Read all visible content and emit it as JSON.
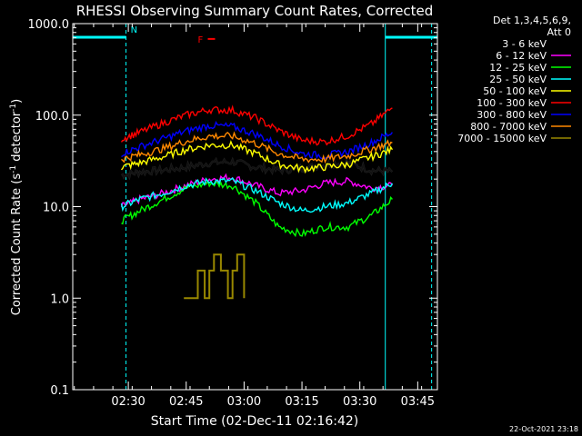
{
  "chart_data": {
    "type": "line",
    "title": "RHESSI Observing Summary Count Rates, Corrected",
    "xlabel": "Start Time (02-Dec-11 02:16:42)",
    "ylabel_main": "Corrected Count Rate (s",
    "ylabel_sup1": "-1",
    "ylabel_mid": " detector",
    "ylabel_sup2": "-1",
    "ylabel_end": ")",
    "ylabel": "Corrected Count Rate (s-1 detector-1)",
    "y_scale": "log",
    "ylim": [
      0.1,
      1000
    ],
    "xlim": [
      2.26,
      3.835
    ],
    "xlim_note_hours": "decimal hours UT",
    "y_ticks": [
      {
        "value": 0.1,
        "label": "0.1"
      },
      {
        "value": 1,
        "label": "1.0"
      },
      {
        "value": 10,
        "label": "10.0"
      },
      {
        "value": 100,
        "label": "100.0"
      },
      {
        "value": 1000,
        "label": "1000.0"
      }
    ],
    "x_ticks": [
      {
        "hours": 2.5,
        "label": "02:30"
      },
      {
        "hours": 2.75,
        "label": "02:45"
      },
      {
        "hours": 3.0,
        "label": "03:00"
      },
      {
        "hours": 3.25,
        "label": "03:15"
      },
      {
        "hours": 3.5,
        "label": "03:30"
      },
      {
        "hours": 3.75,
        "label": "03:45"
      }
    ],
    "legend_header": [
      "Det 1,3,4,5,6,9,",
      "Att 0"
    ],
    "legend_position": "right",
    "series": [
      {
        "name": "3 - 6 keV",
        "color": "#000000",
        "x": [
          2.47,
          2.55,
          2.65,
          2.75,
          2.85,
          2.95,
          3.05,
          3.15,
          3.25,
          3.35,
          3.45,
          3.55,
          3.64
        ],
        "y": [
          22,
          24,
          25,
          27,
          30,
          31,
          27,
          25,
          26,
          29,
          30,
          25,
          24
        ]
      },
      {
        "name": "6 - 12 keV",
        "color": "#ff00ff",
        "x": [
          2.47,
          2.55,
          2.65,
          2.75,
          2.85,
          2.95,
          3.05,
          3.15,
          3.25,
          3.35,
          3.45,
          3.55,
          3.64
        ],
        "y": [
          10,
          12,
          14,
          17,
          20,
          21,
          17,
          14,
          15,
          18,
          19,
          16,
          17
        ]
      },
      {
        "name": "12 - 25 keV",
        "color": "#00ff00",
        "x": [
          2.47,
          2.55,
          2.65,
          2.75,
          2.85,
          2.95,
          3.05,
          3.15,
          3.25,
          3.35,
          3.45,
          3.55,
          3.64
        ],
        "y": [
          7,
          9,
          12,
          16,
          18,
          17,
          11,
          6,
          5,
          6,
          6,
          8,
          12
        ]
      },
      {
        "name": "25 - 50 keV",
        "color": "#00ffff",
        "x": [
          2.47,
          2.55,
          2.65,
          2.75,
          2.85,
          2.95,
          3.05,
          3.15,
          3.25,
          3.35,
          3.45,
          3.55,
          3.64
        ],
        "y": [
          10,
          12,
          14,
          17,
          19,
          19,
          15,
          11,
          9,
          10,
          11,
          14,
          18
        ]
      },
      {
        "name": "50 - 100 keV",
        "color": "#ffff00",
        "x": [
          2.47,
          2.55,
          2.65,
          2.75,
          2.85,
          2.95,
          3.05,
          3.15,
          3.25,
          3.35,
          3.45,
          3.55,
          3.64
        ],
        "y": [
          27,
          30,
          35,
          42,
          47,
          47,
          38,
          29,
          26,
          27,
          29,
          35,
          42
        ]
      },
      {
        "name": "100 - 300 keV",
        "color": "#ff0000",
        "x": [
          2.47,
          2.55,
          2.65,
          2.75,
          2.85,
          2.95,
          3.05,
          3.15,
          3.25,
          3.35,
          3.45,
          3.55,
          3.64
        ],
        "y": [
          55,
          65,
          82,
          100,
          115,
          113,
          93,
          68,
          53,
          51,
          60,
          80,
          120
        ]
      },
      {
        "name": "300 - 800 keV",
        "color": "#0000ff",
        "x": [
          2.47,
          2.55,
          2.65,
          2.75,
          2.85,
          2.95,
          3.05,
          3.15,
          3.25,
          3.35,
          3.45,
          3.55,
          3.64
        ],
        "y": [
          38,
          45,
          55,
          67,
          77,
          75,
          62,
          47,
          38,
          36,
          40,
          50,
          65
        ]
      },
      {
        "name": "800 - 7000 keV",
        "color": "#ff8800",
        "x": [
          2.47,
          2.55,
          2.65,
          2.75,
          2.85,
          2.95,
          3.05,
          3.15,
          3.25,
          3.35,
          3.45,
          3.55,
          3.64
        ],
        "y": [
          33,
          37,
          43,
          52,
          59,
          59,
          49,
          38,
          33,
          33,
          36,
          43,
          50
        ]
      },
      {
        "name": "7000 - 15000 keV",
        "color": "#998800",
        "x": [
          2.74,
          2.78,
          2.8,
          2.83,
          2.85,
          2.87,
          2.9,
          2.93,
          2.95,
          2.97,
          3.0
        ],
        "y": [
          1,
          1,
          2,
          1,
          2,
          3,
          2,
          1,
          2,
          3,
          1
        ]
      }
    ],
    "annotations": [
      {
        "text": "N",
        "color": "#00ffff",
        "hours": 2.51,
        "y": 1000
      },
      {
        "text": "F",
        "color": "#ff0000",
        "hours": 2.8,
        "y": 780
      }
    ],
    "night_intervals_hours": [
      [
        2.26,
        2.49
      ],
      [
        3.61,
        3.835
      ]
    ],
    "vertical_lines_hours": [
      2.26,
      2.49,
      3.61,
      3.81
    ],
    "footer": "22-Oct-2021 23:18"
  }
}
